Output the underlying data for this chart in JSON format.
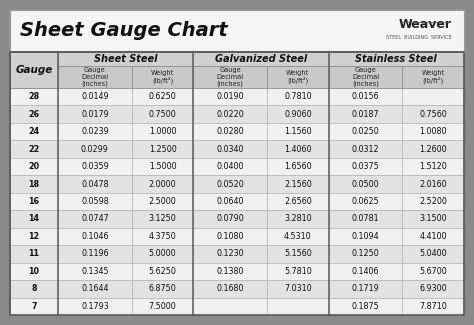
{
  "title": "Sheet Gauge Chart",
  "bg_outer": "#8a8a8a",
  "bg_title": "#f5f5f5",
  "bg_table": "#ffffff",
  "bg_header1": "#d0d0d0",
  "bg_subheader": "#c8c8c8",
  "bg_row_even": "#f0f0f0",
  "bg_row_odd": "#e2e2e2",
  "col_headers": [
    "Sheet Steel",
    "Galvanized Steel",
    "Stainless Steel"
  ],
  "gauges": [
    28,
    26,
    24,
    22,
    20,
    18,
    16,
    14,
    12,
    11,
    10,
    8,
    7
  ],
  "sheet_steel": [
    [
      "0.0149",
      "0.6250"
    ],
    [
      "0.0179",
      "0.7500"
    ],
    [
      "0.0239",
      "1.0000"
    ],
    [
      "0.0299",
      "1.2500"
    ],
    [
      "0.0359",
      "1.5000"
    ],
    [
      "0.0478",
      "2.0000"
    ],
    [
      "0.0598",
      "2.5000"
    ],
    [
      "0.0747",
      "3.1250"
    ],
    [
      "0.1046",
      "4.3750"
    ],
    [
      "0.1196",
      "5.0000"
    ],
    [
      "0.1345",
      "5.6250"
    ],
    [
      "0.1644",
      "6.8750"
    ],
    [
      "0.1793",
      "7.5000"
    ]
  ],
  "galvanized_steel": [
    [
      "0.0190",
      "0.7810"
    ],
    [
      "0.0220",
      "0.9060"
    ],
    [
      "0.0280",
      "1.1560"
    ],
    [
      "0.0340",
      "1.4060"
    ],
    [
      "0.0400",
      "1.6560"
    ],
    [
      "0.0520",
      "2.1560"
    ],
    [
      "0.0640",
      "2.6560"
    ],
    [
      "0.0790",
      "3.2810"
    ],
    [
      "0.1080",
      "4.5310"
    ],
    [
      "0.1230",
      "5.1560"
    ],
    [
      "0.1380",
      "5.7810"
    ],
    [
      "0.1680",
      "7.0310"
    ],
    [
      "",
      ""
    ]
  ],
  "stainless_steel": [
    [
      "0.0156",
      ""
    ],
    [
      "0.0187",
      "0.7560"
    ],
    [
      "0.0250",
      "1.0080"
    ],
    [
      "0.0312",
      "1.2600"
    ],
    [
      "0.0375",
      "1.5120"
    ],
    [
      "0.0500",
      "2.0160"
    ],
    [
      "0.0625",
      "2.5200"
    ],
    [
      "0.0781",
      "3.1500"
    ],
    [
      "0.1094",
      "4.4100"
    ],
    [
      "0.1250",
      "5.0400"
    ],
    [
      "0.1406",
      "5.6700"
    ],
    [
      "0.1719",
      "6.9300"
    ],
    [
      "0.1875",
      "7.8710"
    ]
  ]
}
